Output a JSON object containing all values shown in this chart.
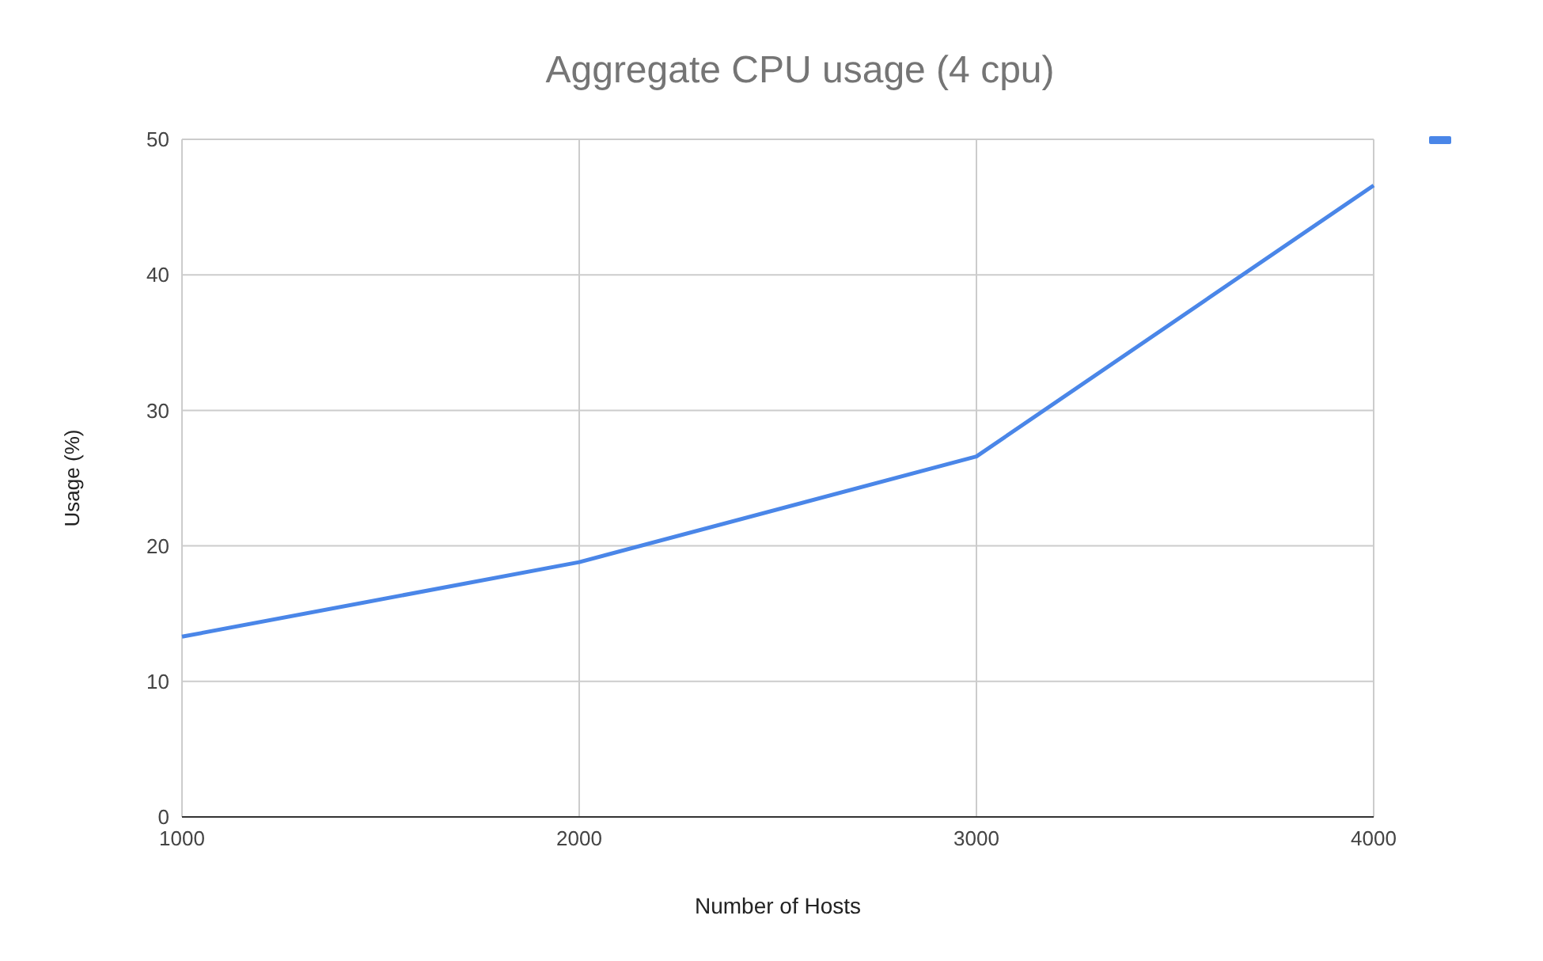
{
  "chart_data": {
    "type": "line",
    "title": "Aggregate CPU usage (4 cpu)",
    "xlabel": "Number of Hosts",
    "ylabel": "Usage (%)",
    "x": [
      1000,
      2000,
      3000,
      4000
    ],
    "series": [
      {
        "color": "#4a86e8",
        "values": [
          13.3,
          18.8,
          26.6,
          46.6
        ]
      }
    ],
    "xlim": [
      1000,
      4000
    ],
    "xticks": [
      1000,
      2000,
      3000,
      4000
    ],
    "ylim": [
      0,
      50
    ],
    "yticks": [
      0,
      10,
      20,
      30,
      40,
      50
    ],
    "grid": true,
    "marker": "none",
    "line_style": "solid"
  }
}
